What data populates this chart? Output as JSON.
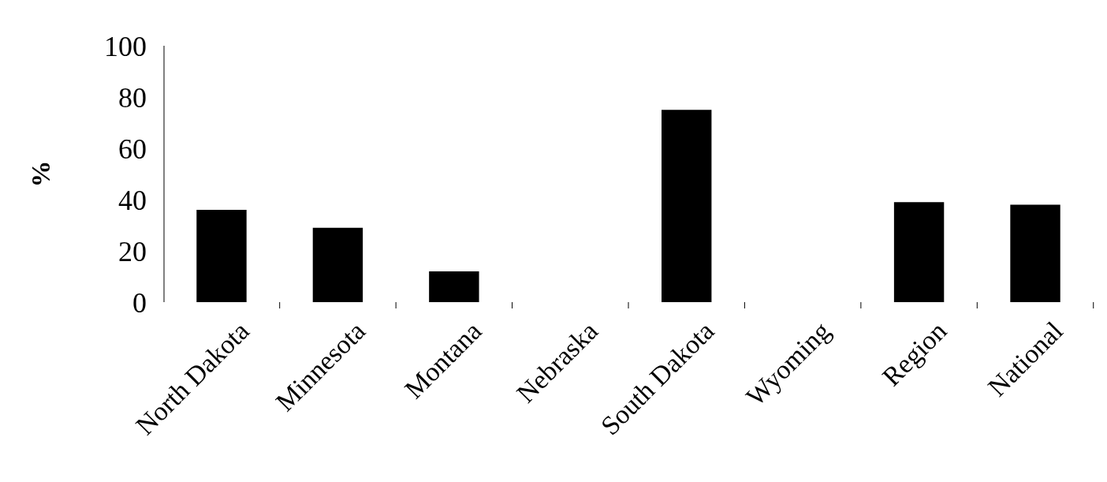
{
  "chart_data": {
    "type": "bar",
    "ylabel": "%",
    "categories": [
      "North Dakota",
      "Minnesota",
      "Montana",
      "Nebraska",
      "South Dakota",
      "Wyoming",
      "Region",
      "National"
    ],
    "values": [
      36,
      29,
      12,
      null,
      75,
      null,
      39,
      38
    ],
    "color": "#000000",
    "ylim": [
      0,
      100
    ],
    "yticks": [
      0,
      20,
      40,
      60,
      80,
      100
    ],
    "grid": false
  }
}
